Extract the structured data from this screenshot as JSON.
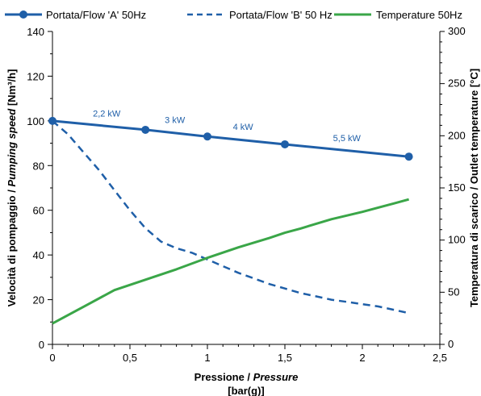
{
  "chart_data": {
    "type": "line",
    "legend": {
      "placement": "top"
    },
    "x": {
      "label_parts": [
        {
          "text": "Pressione / ",
          "italic": false
        },
        {
          "text": "Pressure",
          "italic": true
        }
      ],
      "unit": "[bar(g)]",
      "range": [
        0,
        2.5
      ],
      "ticks": [
        {
          "value": 0,
          "label": "0"
        },
        {
          "value": 0.5,
          "label": "0,5"
        },
        {
          "value": 1,
          "label": "1"
        },
        {
          "value": 1.5,
          "label": "1,5"
        },
        {
          "value": 2,
          "label": "2"
        },
        {
          "value": 2.5,
          "label": "2,5"
        }
      ],
      "minor_step": 0.1
    },
    "y_left": {
      "label_parts": [
        {
          "text": "Velocità di pompaggio / ",
          "italic": false
        },
        {
          "text": "Pumping speed",
          "italic": true
        },
        {
          "text": " [Nm³/h]",
          "italic": false
        }
      ],
      "range": [
        0,
        140
      ],
      "ticks": [
        0,
        20,
        40,
        60,
        80,
        100,
        120,
        140
      ],
      "minor_step": 10
    },
    "y_right": {
      "label": "Temperatura di scarico / Outlet temperature [°C]",
      "range": [
        0,
        300
      ],
      "ticks": [
        0,
        50,
        100,
        150,
        200,
        250,
        300
      ],
      "minor_step": 10
    },
    "series": [
      {
        "name": "Portata/Flow 'A' 50Hz",
        "axis": "left",
        "color": "#1f5fa8",
        "style": "solid-markers",
        "points": [
          [
            0,
            100
          ],
          [
            0.6,
            96
          ],
          [
            1.0,
            93
          ],
          [
            1.5,
            89.5
          ],
          [
            2.3,
            84
          ]
        ]
      },
      {
        "name": "Portata/Flow 'B' 50 Hz",
        "axis": "left",
        "color": "#1f5fa8",
        "style": "dashed",
        "points": [
          [
            0,
            100
          ],
          [
            0.1,
            94
          ],
          [
            0.2,
            86
          ],
          [
            0.3,
            78
          ],
          [
            0.4,
            69
          ],
          [
            0.5,
            60
          ],
          [
            0.6,
            52
          ],
          [
            0.7,
            46
          ],
          [
            0.8,
            43
          ],
          [
            0.9,
            41
          ],
          [
            1.0,
            38
          ],
          [
            1.1,
            35
          ],
          [
            1.2,
            32
          ],
          [
            1.3,
            29.5
          ],
          [
            1.4,
            27
          ],
          [
            1.5,
            25
          ],
          [
            1.6,
            23
          ],
          [
            1.7,
            21.5
          ],
          [
            1.8,
            20
          ],
          [
            1.9,
            19
          ],
          [
            2.0,
            18
          ],
          [
            2.1,
            17
          ],
          [
            2.2,
            15.5
          ],
          [
            2.3,
            14
          ]
        ]
      },
      {
        "name": "Temperature 50Hz",
        "axis": "right",
        "color": "#3aa648",
        "style": "solid",
        "points": [
          [
            0,
            20
          ],
          [
            0.2,
            36
          ],
          [
            0.4,
            52
          ],
          [
            0.6,
            62
          ],
          [
            0.8,
            72
          ],
          [
            1.0,
            83
          ],
          [
            1.2,
            93
          ],
          [
            1.4,
            102
          ],
          [
            1.5,
            107
          ],
          [
            1.6,
            111
          ],
          [
            1.8,
            120
          ],
          [
            2.0,
            127
          ],
          [
            2.2,
            135
          ],
          [
            2.3,
            139
          ]
        ]
      }
    ],
    "annotations": [
      {
        "text": "2,2 kW",
        "x": 0.35,
        "y": 102
      },
      {
        "text": "3 kW",
        "x": 0.79,
        "y": 99
      },
      {
        "text": "4 kW",
        "x": 1.23,
        "y": 96
      },
      {
        "text": "5,5 kW",
        "x": 1.9,
        "y": 91
      }
    ],
    "annotation_color": "#1f5fa8",
    "grid": false
  }
}
